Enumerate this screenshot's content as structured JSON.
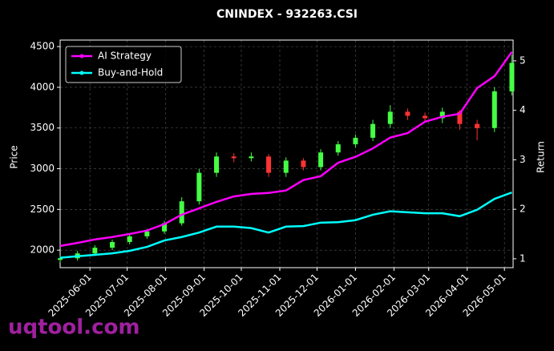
{
  "chart_data": {
    "type": "candlestick",
    "title": "CNINDEX - 932263.CSI",
    "ylabel": "Price",
    "y2label": "Return",
    "watermark": "uqtool.com",
    "x": [
      "2025-05-08",
      "2025-05-22",
      "2025-06-05",
      "2025-06-19",
      "2025-07-03",
      "2025-07-17",
      "2025-07-31",
      "2025-08-14",
      "2025-08-28",
      "2025-09-11",
      "2025-09-25",
      "2025-10-09",
      "2025-10-23",
      "2025-11-06",
      "2025-11-20",
      "2025-12-04",
      "2025-12-18",
      "2026-01-01",
      "2026-01-15",
      "2026-01-29",
      "2026-02-12",
      "2026-02-26",
      "2026-03-12",
      "2026-03-26",
      "2026-04-09",
      "2026-04-23",
      "2026-05-07"
    ],
    "open": [
      1880,
      1900,
      1960,
      2030,
      2100,
      2170,
      2230,
      2330,
      2600,
      2950,
      3150,
      3130,
      3150,
      2950,
      3100,
      3020,
      3200,
      3300,
      3380,
      3550,
      3700,
      3650,
      3620,
      3700,
      3550,
      3500,
      3950
    ],
    "high": [
      1930,
      1990,
      2060,
      2130,
      2200,
      2260,
      2360,
      2650,
      3000,
      3200,
      3190,
      3200,
      3180,
      3140,
      3130,
      3240,
      3340,
      3420,
      3600,
      3780,
      3740,
      3690,
      3750,
      3720,
      3600,
      4000,
      4400
    ],
    "low": [
      1850,
      1870,
      1930,
      2000,
      2070,
      2140,
      2200,
      2300,
      2560,
      2900,
      3080,
      3090,
      2900,
      2900,
      2980,
      2980,
      3160,
      3260,
      3340,
      3500,
      3600,
      3580,
      3560,
      3480,
      3350,
      3450,
      3900
    ],
    "close": [
      1900,
      1960,
      2030,
      2100,
      2170,
      2230,
      2330,
      2600,
      2950,
      3150,
      3130,
      3150,
      2950,
      3100,
      3020,
      3200,
      3300,
      3380,
      3550,
      3700,
      3650,
      3620,
      3700,
      3550,
      3500,
      3950,
      4300
    ],
    "up_color": "#44ff44",
    "down_color": "#ff3333",
    "series": [
      {
        "name": "AI Strategy",
        "color": "#ff00ff",
        "axis": "y2",
        "values": [
          1.26,
          1.32,
          1.39,
          1.44,
          1.5,
          1.57,
          1.7,
          1.89,
          2.02,
          2.15,
          2.26,
          2.31,
          2.33,
          2.38,
          2.59,
          2.67,
          2.94,
          3.06,
          3.23,
          3.45,
          3.54,
          3.77,
          3.87,
          3.93,
          4.45,
          4.69,
          5.18
        ]
      },
      {
        "name": "Buy-and-Hold",
        "color": "#00ffff",
        "axis": "y2",
        "values": [
          1.02,
          1.05,
          1.08,
          1.11,
          1.16,
          1.24,
          1.37,
          1.44,
          1.53,
          1.65,
          1.65,
          1.62,
          1.53,
          1.65,
          1.66,
          1.73,
          1.74,
          1.78,
          1.89,
          1.96,
          1.94,
          1.92,
          1.92,
          1.86,
          1.99,
          2.21,
          2.34
        ]
      }
    ],
    "xlim": [
      "2025-05-08",
      "2026-05-08"
    ],
    "xticks": [
      "2025-06-01",
      "2025-07-01",
      "2025-08-01",
      "2025-09-01",
      "2025-10-01",
      "2025-11-01",
      "2025-12-01",
      "2026-01-01",
      "2026-02-01",
      "2026-03-01",
      "2026-04-01",
      "2026-05-01"
    ],
    "ylim": [
      1785,
      4580
    ],
    "yticks": [
      2000,
      2500,
      3000,
      3500,
      4000,
      4500
    ],
    "y2lim": [
      0.82,
      5.42
    ],
    "y2ticks": [
      1,
      2,
      3,
      4,
      5
    ],
    "grid": true,
    "legend": "upper left"
  }
}
